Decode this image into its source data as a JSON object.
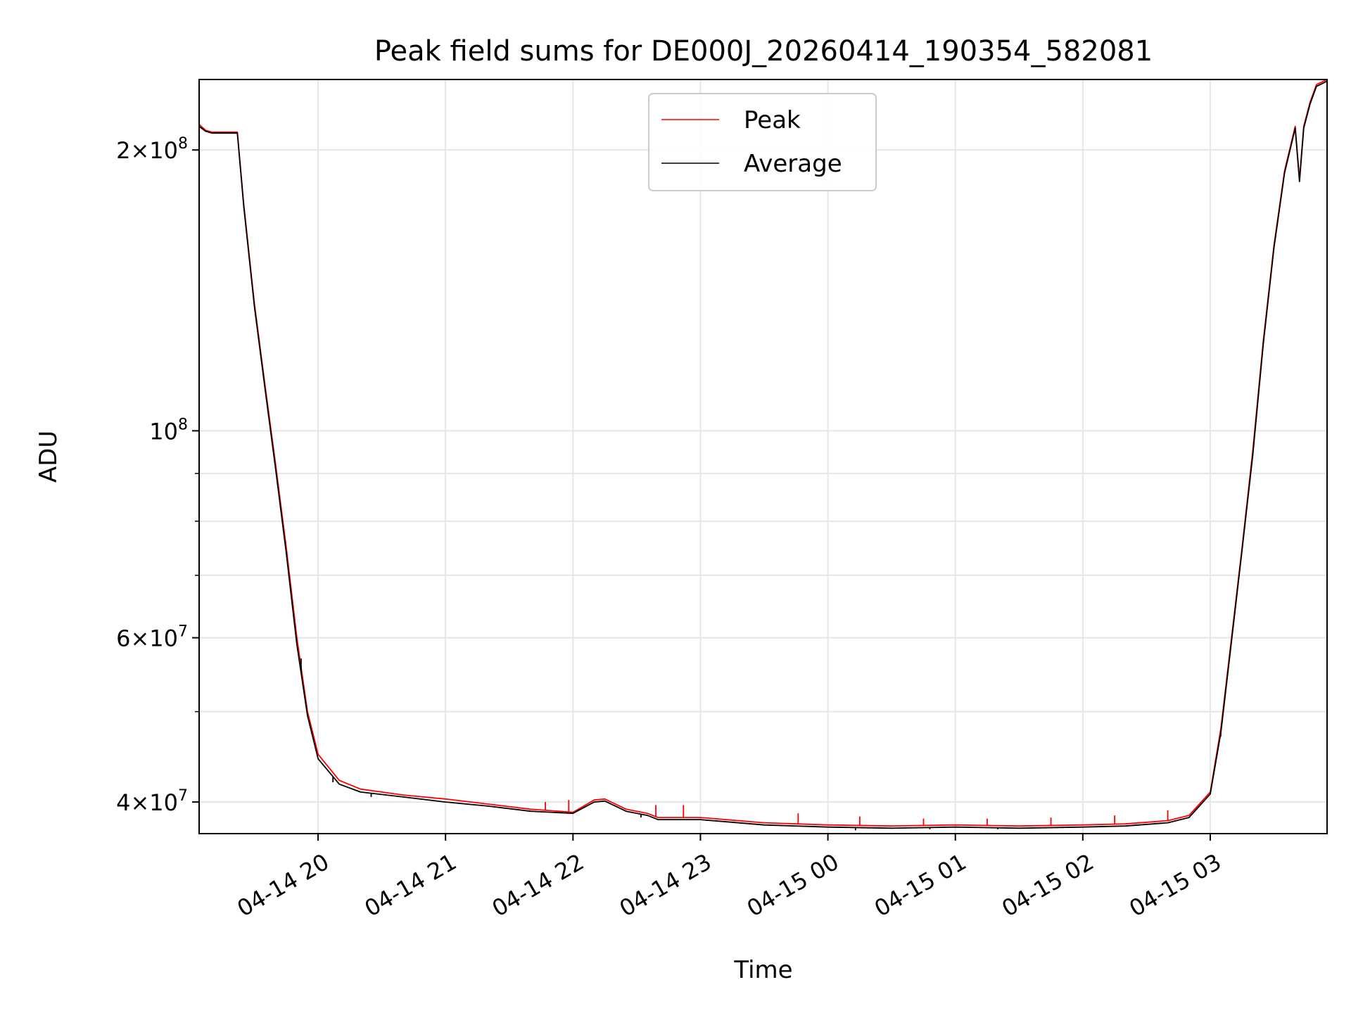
{
  "chart_data": {
    "type": "line",
    "title": "Peak field sums for DE000J_20260414_190354_582081",
    "xlabel": "Time",
    "ylabel": "ADU",
    "yscale": "log",
    "ylim": [
      37000000,
      238000000
    ],
    "xlim": [
      "2026-04-14 19:04",
      "2026-04-15 03:55"
    ],
    "grid": true,
    "legend_position": "top-center",
    "x_ticks": [
      {
        "t": "2026-04-14 20:00",
        "label": "04-14 20"
      },
      {
        "t": "2026-04-14 21:00",
        "label": "04-14 21"
      },
      {
        "t": "2026-04-14 22:00",
        "label": "04-14 22"
      },
      {
        "t": "2026-04-14 23:00",
        "label": "04-14 23"
      },
      {
        "t": "2026-04-15 00:00",
        "label": "04-15 00"
      },
      {
        "t": "2026-04-15 01:00",
        "label": "04-15 01"
      },
      {
        "t": "2026-04-15 02:00",
        "label": "04-15 02"
      },
      {
        "t": "2026-04-15 03:00",
        "label": "04-15 03"
      }
    ],
    "y_ticks_major": [
      {
        "v": 40000000,
        "mantissa": "4",
        "exp": "7"
      },
      {
        "v": 60000000,
        "mantissa": "6",
        "exp": "7"
      },
      {
        "v": 100000000,
        "mantissa": "",
        "exp": "8"
      },
      {
        "v": 200000000,
        "mantissa": "2",
        "exp": "8"
      }
    ],
    "y_ticks_minor": [
      50000000,
      70000000,
      80000000,
      90000000
    ],
    "series": [
      {
        "name": "Peak",
        "color": "#ff0000",
        "x": [
          "2026-04-14 19:04",
          "2026-04-14 19:07",
          "2026-04-14 19:10",
          "2026-04-14 19:22",
          "2026-04-14 19:25",
          "2026-04-14 19:30",
          "2026-04-14 19:35",
          "2026-04-14 19:40",
          "2026-04-14 19:45",
          "2026-04-14 19:50",
          "2026-04-14 19:55",
          "2026-04-14 20:00",
          "2026-04-14 20:10",
          "2026-04-14 20:20",
          "2026-04-14 20:40",
          "2026-04-14 21:00",
          "2026-04-14 21:20",
          "2026-04-14 21:40",
          "2026-04-14 22:00",
          "2026-04-14 22:10",
          "2026-04-14 22:15",
          "2026-04-14 22:25",
          "2026-04-14 22:35",
          "2026-04-14 22:40",
          "2026-04-14 23:00",
          "2026-04-14 23:30",
          "2026-04-15 00:00",
          "2026-04-15 00:30",
          "2026-04-15 01:00",
          "2026-04-15 01:30",
          "2026-04-15 02:00",
          "2026-04-15 02:20",
          "2026-04-15 02:40",
          "2026-04-15 02:50",
          "2026-04-15 03:00",
          "2026-04-15 03:05",
          "2026-04-15 03:10",
          "2026-04-15 03:15",
          "2026-04-15 03:20",
          "2026-04-15 03:25",
          "2026-04-15 03:30",
          "2026-04-15 03:35",
          "2026-04-15 03:40",
          "2026-04-15 03:42",
          "2026-04-15 03:44",
          "2026-04-15 03:47",
          "2026-04-15 03:50",
          "2026-04-15 03:55"
        ],
        "values": [
          213000000,
          210000000,
          209000000,
          209000000,
          175000000,
          137000000,
          112000000,
          92000000,
          75000000,
          60000000,
          50000000,
          45000000,
          42200000,
          41300000,
          40700000,
          40300000,
          39800000,
          39300000,
          39000000,
          40200000,
          40300000,
          39300000,
          38900000,
          38500000,
          38500000,
          38000000,
          37800000,
          37700000,
          37800000,
          37700000,
          37800000,
          37900000,
          38200000,
          38700000,
          41000000,
          48000000,
          60000000,
          75000000,
          95000000,
          125000000,
          158000000,
          190000000,
          212000000,
          186000000,
          212000000,
          225000000,
          235000000,
          238000000
        ],
        "spikes": [
          {
            "x": "2026-04-14 21:47",
            "y": 40000000
          },
          {
            "x": "2026-04-14 21:58",
            "y": 40200000
          },
          {
            "x": "2026-04-14 22:39",
            "y": 39700000
          },
          {
            "x": "2026-04-14 22:52",
            "y": 39700000
          },
          {
            "x": "2026-04-14 23:46",
            "y": 38900000
          },
          {
            "x": "2026-04-15 00:15",
            "y": 38600000
          },
          {
            "x": "2026-04-15 00:45",
            "y": 38400000
          },
          {
            "x": "2026-04-15 01:15",
            "y": 38400000
          },
          {
            "x": "2026-04-15 01:45",
            "y": 38500000
          },
          {
            "x": "2026-04-15 02:15",
            "y": 38700000
          },
          {
            "x": "2026-04-15 02:40",
            "y": 39200000
          },
          {
            "x": "2026-04-15 03:05",
            "y": 47000000
          }
        ]
      },
      {
        "name": "Average",
        "color": "#000000",
        "x": [
          "2026-04-14 19:04",
          "2026-04-14 19:07",
          "2026-04-14 19:10",
          "2026-04-14 19:22",
          "2026-04-14 19:25",
          "2026-04-14 19:30",
          "2026-04-14 19:35",
          "2026-04-14 19:40",
          "2026-04-14 19:45",
          "2026-04-14 19:50",
          "2026-04-14 19:55",
          "2026-04-14 20:00",
          "2026-04-14 20:10",
          "2026-04-14 20:20",
          "2026-04-14 20:40",
          "2026-04-14 21:00",
          "2026-04-14 21:20",
          "2026-04-14 21:40",
          "2026-04-14 22:00",
          "2026-04-14 22:10",
          "2026-04-14 22:15",
          "2026-04-14 22:25",
          "2026-04-14 22:35",
          "2026-04-14 22:40",
          "2026-04-14 23:00",
          "2026-04-14 23:30",
          "2026-04-15 00:00",
          "2026-04-15 00:30",
          "2026-04-15 01:00",
          "2026-04-15 01:30",
          "2026-04-15 02:00",
          "2026-04-15 02:20",
          "2026-04-15 02:40",
          "2026-04-15 02:50",
          "2026-04-15 03:00",
          "2026-04-15 03:05",
          "2026-04-15 03:10",
          "2026-04-15 03:15",
          "2026-04-15 03:20",
          "2026-04-15 03:25",
          "2026-04-15 03:30",
          "2026-04-15 03:35",
          "2026-04-15 03:40",
          "2026-04-15 03:42",
          "2026-04-15 03:44",
          "2026-04-15 03:47",
          "2026-04-15 03:50",
          "2026-04-15 03:55"
        ],
        "values": [
          212000000,
          209500000,
          208500000,
          208500000,
          174000000,
          136000000,
          111000000,
          91000000,
          74000000,
          59000000,
          49500000,
          44500000,
          41800000,
          41000000,
          40500000,
          40000000,
          39600000,
          39100000,
          38900000,
          40000000,
          40100000,
          39100000,
          38700000,
          38300000,
          38300000,
          37800000,
          37600000,
          37500000,
          37600000,
          37500000,
          37600000,
          37700000,
          38000000,
          38500000,
          40800000,
          47500000,
          59500000,
          74500000,
          94000000,
          124000000,
          157000000,
          189000000,
          211000000,
          185000000,
          211000000,
          224000000,
          234000000,
          237000000
        ],
        "dips": [
          {
            "x": "2026-04-14 19:52",
            "y": 57000000
          },
          {
            "x": "2026-04-14 20:07",
            "y": 42000000
          },
          {
            "x": "2026-04-14 20:25",
            "y": 40500000
          },
          {
            "x": "2026-04-14 22:32",
            "y": 38500000
          },
          {
            "x": "2026-04-14 23:38",
            "y": 37700000
          },
          {
            "x": "2026-04-15 00:13",
            "y": 37300000
          },
          {
            "x": "2026-04-15 00:48",
            "y": 37400000
          },
          {
            "x": "2026-04-15 01:20",
            "y": 37400000
          }
        ]
      }
    ]
  }
}
